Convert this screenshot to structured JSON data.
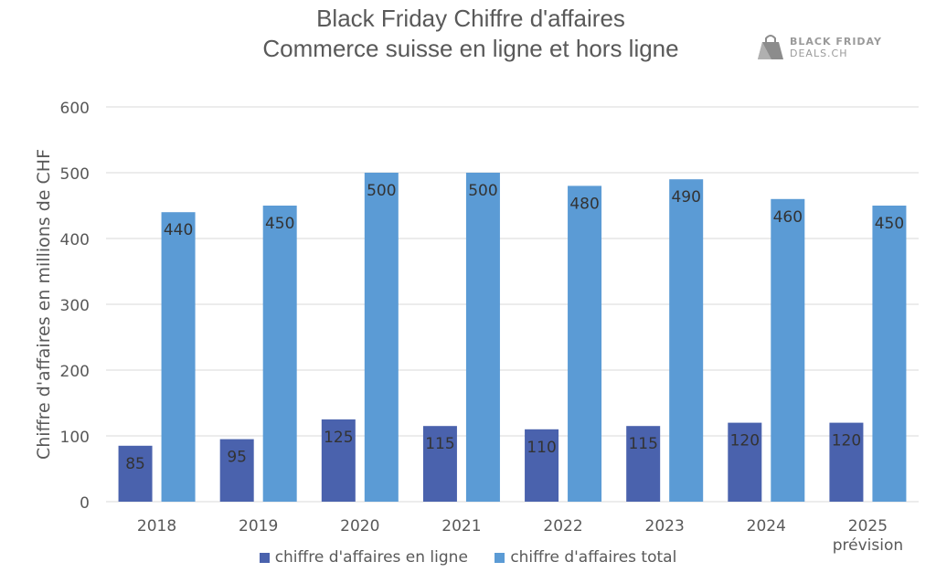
{
  "title_line1": "Black Friday Chiffre d'affaires",
  "title_line2": "Commerce suisse en ligne et hors ligne",
  "logo": {
    "line1": "BLACK FRIDAY",
    "line2": "DEALS.CH"
  },
  "colors": {
    "online": "#4a62ad",
    "total": "#5b9bd5",
    "grid": "#d9d9d9",
    "text": "#595959"
  },
  "chart_data": {
    "type": "bar",
    "ylabel": "Chiffre d'affaires en millions de CHF",
    "ylim": [
      0,
      600
    ],
    "yticks": [
      0,
      100,
      200,
      300,
      400,
      500,
      600
    ],
    "grid": true,
    "legend_position": "bottom",
    "categories": [
      [
        "2018"
      ],
      [
        "2019"
      ],
      [
        "2020"
      ],
      [
        "2021"
      ],
      [
        "2022"
      ],
      [
        "2023"
      ],
      [
        "2024"
      ],
      [
        "2025",
        "prévision"
      ]
    ],
    "series": [
      {
        "name": "chiffre d'affaires en ligne",
        "values": [
          85,
          95,
          125,
          115,
          110,
          115,
          120,
          120
        ]
      },
      {
        "name": "chiffre d'affaires total",
        "values": [
          440,
          450,
          500,
          500,
          480,
          490,
          460,
          450
        ]
      }
    ]
  }
}
